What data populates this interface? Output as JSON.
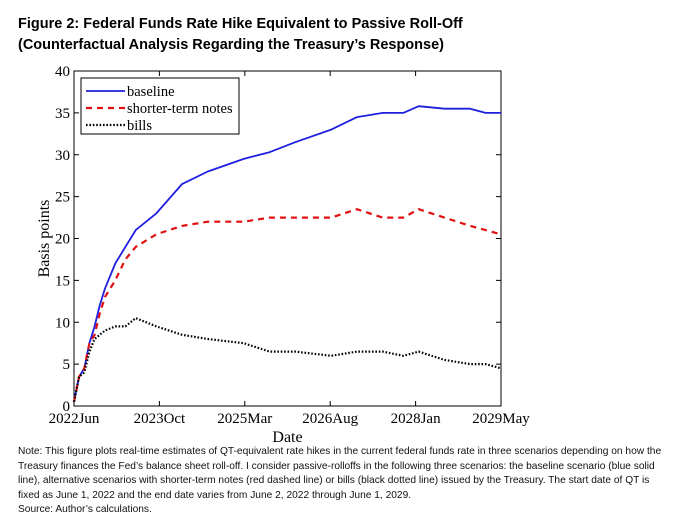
{
  "figure": {
    "title_line1": "Figure 2: Federal Funds Rate Hike Equivalent to Passive Roll-Off",
    "title_line2": "(Counterfactual Analysis Regarding the Treasury’s Response)",
    "note": "Note: This figure plots real-time estimates of QT-equivalent rate hikes in the current federal funds rate in three scenarios depending on how the Treasury finances the Fed’s balance sheet roll-off. I consider passive-rolloffs in the following three scenarios: the baseline scenario (blue solid line), alternative scenarios with shorter-term notes (red dashed line) or bills (black dotted line) issued by the Treasury. The start date of QT is fixed as June 1, 2022 and the end date varies from June 2, 2022 through June 1, 2029.",
    "source": "Source: Author’s calculations."
  },
  "colors": {
    "baseline": "#1f1fe0",
    "shorter_term_notes": "#e01010",
    "bills": "#000000"
  },
  "chart_data": {
    "type": "line",
    "title": "",
    "xlabel": "Date",
    "ylabel": "Basis points",
    "ylim": [
      0,
      40
    ],
    "yticks": [
      0,
      5,
      10,
      15,
      20,
      25,
      30,
      35,
      40
    ],
    "xlim": [
      "2022-06",
      "2029-05"
    ],
    "xtick_labels": [
      "2022Jun",
      "2023Oct",
      "2025Mar",
      "2026Aug",
      "2028Jan",
      "2029May"
    ],
    "x": [
      "2022-06",
      "2022-07",
      "2022-08",
      "2022-09",
      "2022-10",
      "2022-11",
      "2022-12",
      "2023-02",
      "2023-04",
      "2023-06",
      "2023-10",
      "2024-03",
      "2024-08",
      "2025-03",
      "2025-08",
      "2026-01",
      "2026-08",
      "2027-01",
      "2027-06",
      "2027-10",
      "2028-01",
      "2028-06",
      "2028-11",
      "2029-02",
      "2029-05"
    ],
    "legend_position": "top-left",
    "grid": false,
    "series": [
      {
        "name": "baseline",
        "style": "solid",
        "values": [
          0.5,
          3.5,
          4.5,
          7.5,
          9.5,
          12,
          14,
          17,
          19,
          21,
          23,
          26.5,
          28,
          29.5,
          30.3,
          31.5,
          33,
          34.5,
          35,
          35,
          35.8,
          35.5,
          35.5,
          35,
          35
        ]
      },
      {
        "name": "shorter-term notes",
        "style": "dashed",
        "values": [
          0.5,
          3.5,
          4.5,
          7.5,
          8.5,
          11,
          13,
          15,
          17.5,
          19,
          20.5,
          21.5,
          22,
          22,
          22.5,
          22.5,
          22.5,
          23.5,
          22.5,
          22.5,
          23.5,
          22.5,
          21.5,
          21,
          20.5
        ]
      },
      {
        "name": "bills",
        "style": "dotted",
        "values": [
          0.5,
          3.5,
          4,
          6.5,
          8,
          8.5,
          9,
          9.5,
          9.5,
          10.5,
          9.5,
          8.5,
          8,
          7.5,
          6.5,
          6.5,
          6,
          6.5,
          6.5,
          6,
          6.5,
          5.5,
          5,
          5,
          4.5
        ]
      }
    ]
  }
}
